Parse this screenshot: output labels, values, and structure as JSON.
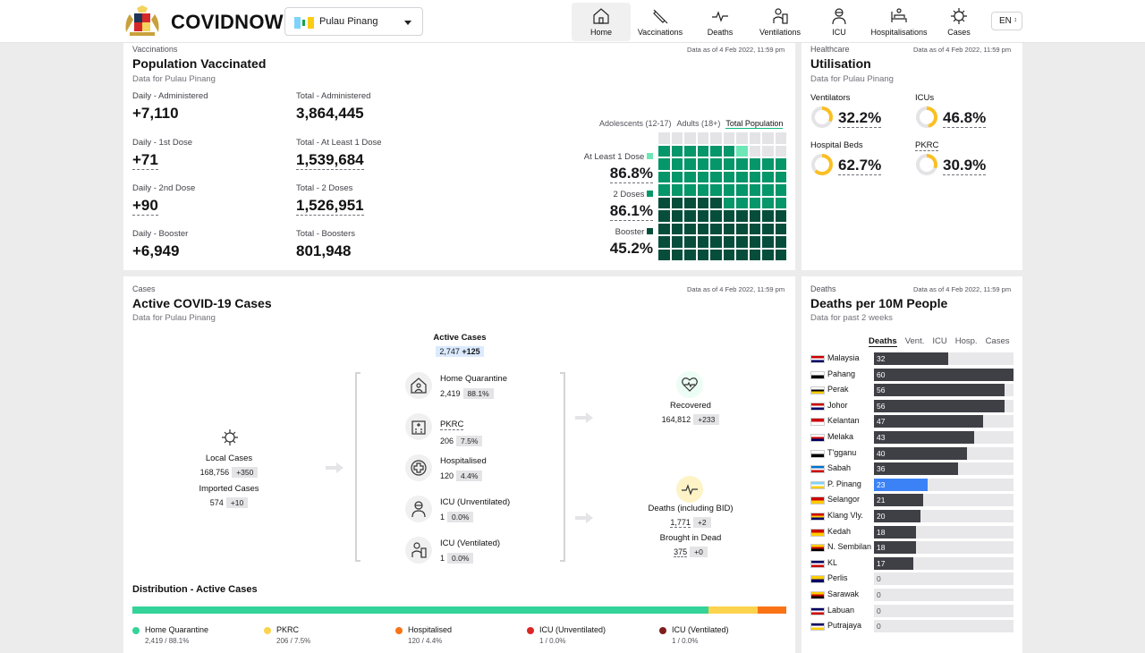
{
  "header": {
    "brand": "COVIDNOW",
    "state": "Pulau Pinang",
    "lang": "EN",
    "nav": [
      {
        "label": "Home",
        "icon": "home-icon"
      },
      {
        "label": "Vaccinations",
        "icon": "syringe-icon"
      },
      {
        "label": "Deaths",
        "icon": "pulse-icon"
      },
      {
        "label": "Ventilations",
        "icon": "ventilator-icon"
      },
      {
        "label": "ICU",
        "icon": "doctor-icon"
      },
      {
        "label": "Hospitalisations",
        "icon": "bed-icon"
      },
      {
        "label": "Cases",
        "icon": "virus-icon"
      }
    ]
  },
  "vax": {
    "kicker": "Vaccinations",
    "title": "Population Vaccinated",
    "sub": "Data for Pulau Pinang",
    "asof": "Data as of 4 Feb 2022, 11:59 pm",
    "stats": [
      {
        "l": "Daily - Administered",
        "v": "+7,110"
      },
      {
        "l": "Total - Administered",
        "v": "3,864,445"
      },
      {
        "l": "Daily - 1st Dose",
        "v": "+71"
      },
      {
        "l": "Total - At Least 1 Dose",
        "v": "1,539,684"
      },
      {
        "l": "Daily - 2nd Dose",
        "v": "+90"
      },
      {
        "l": "Total - 2 Doses",
        "v": "1,526,951"
      },
      {
        "l": "Daily - Booster",
        "v": "+6,949"
      },
      {
        "l": "Total - Boosters",
        "v": "801,948"
      }
    ],
    "tabs": [
      "Adolescents (12-17)",
      "Adults (18+)",
      "Total Population"
    ],
    "legend": [
      {
        "l": "At Least 1 Dose",
        "v": "86.8%",
        "pct": 86.8,
        "c": "#6ee7b7"
      },
      {
        "l": "2 Doses",
        "v": "86.1%",
        "pct": 86.1,
        "c": "#059669"
      },
      {
        "l": "Booster",
        "v": "45.2%",
        "pct": 45.2,
        "c": "#064e3b"
      }
    ]
  },
  "util": {
    "kicker": "Healthcare",
    "title": "Utilisation",
    "sub": "Data for Pulau Pinang",
    "asof": "Data as of 4 Feb 2022, 11:59 pm",
    "items": [
      {
        "l": "Ventilators",
        "v": "32.2%",
        "pct": 32.2
      },
      {
        "l": "ICUs",
        "v": "46.8%",
        "pct": 46.8
      },
      {
        "l": "Hospital Beds",
        "v": "62.7%",
        "pct": 62.7
      },
      {
        "l": "PKRC",
        "v": "30.9%",
        "pct": 30.9
      }
    ],
    "ring_color": "#fbbf24"
  },
  "cases": {
    "kicker": "Cases",
    "title": "Active COVID-19 Cases",
    "sub": "Data for Pulau Pinang",
    "asof": "Data as of 4 Feb 2022, 11:59 pm",
    "active": {
      "l": "Active Cases",
      "v": "2,747",
      "d": "+125"
    },
    "local": {
      "l": "Local Cases",
      "v": "168,756",
      "d": "+350"
    },
    "imported": {
      "l": "Imported Cases",
      "v": "574",
      "d": "+10"
    },
    "mid": [
      {
        "l": "Home Quarantine",
        "v": "2,419",
        "d": "88.1%"
      },
      {
        "l": "PKRC",
        "v": "206",
        "d": "7.5%"
      },
      {
        "l": "Hospitalised",
        "v": "120",
        "d": "4.4%"
      },
      {
        "l": "ICU (Unventilated)",
        "v": "1",
        "d": "0.0%"
      },
      {
        "l": "ICU (Ventilated)",
        "v": "1",
        "d": "0.0%"
      }
    ],
    "recovered": {
      "l": "Recovered",
      "v": "164,812",
      "d": "+233"
    },
    "deaths": {
      "l": "Deaths (including BID)",
      "v": "1,771",
      "d": "+2"
    },
    "bid": {
      "l": "Brought in Dead",
      "v": "375",
      "d": "+0"
    },
    "dist_title": "Distribution - Active Cases",
    "dist": [
      {
        "l": "Home Quarantine",
        "s": "2,419 / 88.1%",
        "pct": 88.1,
        "c": "#34d399"
      },
      {
        "l": "PKRC",
        "s": "206 / 7.5%",
        "pct": 7.5,
        "c": "#fcd34d"
      },
      {
        "l": "Hospitalised",
        "s": "120 / 4.4%",
        "pct": 4.4,
        "c": "#f97316"
      },
      {
        "l": "ICU (Unventilated)",
        "s": "1 / 0.0%",
        "pct": 0,
        "c": "#dc2626"
      },
      {
        "l": "ICU (Ventilated)",
        "s": "1 / 0.0%",
        "pct": 0,
        "c": "#7f1d1d"
      }
    ]
  },
  "deaths": {
    "kicker": "Deaths",
    "title": "Deaths per 10M People",
    "sub": "Data for past 2 weeks",
    "asof": "Data as of 4 Feb 2022, 11:59 pm",
    "tabs": [
      "Deaths",
      "Vent.",
      "ICU",
      "Hosp.",
      "Cases"
    ],
    "max": 60,
    "rows": [
      {
        "n": "Malaysia",
        "v": 32
      },
      {
        "n": "Pahang",
        "v": 60
      },
      {
        "n": "Perak",
        "v": 56
      },
      {
        "n": "Johor",
        "v": 56
      },
      {
        "n": "Kelantan",
        "v": 47
      },
      {
        "n": "Melaka",
        "v": 43
      },
      {
        "n": "T'gganu",
        "v": 40
      },
      {
        "n": "Sabah",
        "v": 36
      },
      {
        "n": "P. Pinang",
        "v": 23,
        "hl": true
      },
      {
        "n": "Selangor",
        "v": 21
      },
      {
        "n": "Klang Vly.",
        "v": 20
      },
      {
        "n": "Kedah",
        "v": 18
      },
      {
        "n": "N. Sembilan",
        "v": 18
      },
      {
        "n": "KL",
        "v": 17
      },
      {
        "n": "Perlis",
        "v": 0
      },
      {
        "n": "Sarawak",
        "v": 0
      },
      {
        "n": "Labuan",
        "v": 0
      },
      {
        "n": "Putrajaya",
        "v": 0
      }
    ]
  }
}
